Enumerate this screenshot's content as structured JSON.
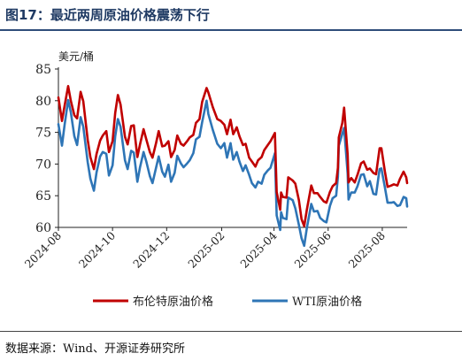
{
  "title": "图17：最近两周原油价格震荡下行",
  "source": "数据来源：Wind、开源证券研究所",
  "chart_data": {
    "type": "line",
    "title": "图17：最近两周原油价格震荡下行",
    "ylabel": "美元/桶",
    "xlabel": "",
    "ylim": [
      60,
      85
    ],
    "yticks": [
      60,
      65,
      70,
      75,
      80,
      85
    ],
    "xticks": [
      "2024-08",
      "2024-10",
      "2024-12",
      "2025-02",
      "2025-04",
      "2025-06",
      "2025-08"
    ],
    "xlim": [
      "2024-08-01",
      "2025-08-29"
    ],
    "grid": false,
    "legend": "bottom",
    "series": [
      {
        "name": "布伦特原油价格",
        "color": "#c00000",
        "points": [
          [
            "2024-08-01",
            80.5
          ],
          [
            "2024-08-05",
            76.8
          ],
          [
            "2024-08-08",
            79.2
          ],
          [
            "2024-08-12",
            82.3
          ],
          [
            "2024-08-15",
            80.0
          ],
          [
            "2024-08-19",
            77.7
          ],
          [
            "2024-08-22",
            77.2
          ],
          [
            "2024-08-26",
            81.4
          ],
          [
            "2024-08-29",
            79.9
          ],
          [
            "2024-09-03",
            73.8
          ],
          [
            "2024-09-06",
            71.1
          ],
          [
            "2024-09-10",
            69.2
          ],
          [
            "2024-09-13",
            71.6
          ],
          [
            "2024-09-17",
            73.7
          ],
          [
            "2024-09-20",
            74.5
          ],
          [
            "2024-09-24",
            75.2
          ],
          [
            "2024-09-27",
            71.9
          ],
          [
            "2024-10-01",
            73.6
          ],
          [
            "2024-10-04",
            78.1
          ],
          [
            "2024-10-07",
            80.9
          ],
          [
            "2024-10-10",
            79.4
          ],
          [
            "2024-10-15",
            74.3
          ],
          [
            "2024-10-18",
            73.1
          ],
          [
            "2024-10-22",
            76.0
          ],
          [
            "2024-10-25",
            76.1
          ],
          [
            "2024-10-29",
            71.1
          ],
          [
            "2024-11-01",
            73.1
          ],
          [
            "2024-11-05",
            75.5
          ],
          [
            "2024-11-08",
            73.9
          ],
          [
            "2024-11-12",
            71.9
          ],
          [
            "2024-11-15",
            71.0
          ],
          [
            "2024-11-19",
            73.3
          ],
          [
            "2024-11-22",
            75.2
          ],
          [
            "2024-11-26",
            72.8
          ],
          [
            "2024-11-29",
            72.9
          ],
          [
            "2024-12-03",
            73.6
          ],
          [
            "2024-12-06",
            71.1
          ],
          [
            "2024-12-10",
            72.2
          ],
          [
            "2024-12-13",
            74.5
          ],
          [
            "2024-12-17",
            73.2
          ],
          [
            "2024-12-20",
            72.9
          ],
          [
            "2024-12-24",
            73.6
          ],
          [
            "2024-12-27",
            74.2
          ],
          [
            "2024-12-31",
            74.6
          ],
          [
            "2025-01-03",
            76.5
          ],
          [
            "2025-01-07",
            77.1
          ],
          [
            "2025-01-10",
            79.8
          ],
          [
            "2025-01-15",
            82.0
          ],
          [
            "2025-01-17",
            81.3
          ],
          [
            "2025-01-22",
            79.0
          ],
          [
            "2025-01-27",
            77.1
          ],
          [
            "2025-01-31",
            76.8
          ],
          [
            "2025-02-04",
            76.2
          ],
          [
            "2025-02-07",
            74.7
          ],
          [
            "2025-02-11",
            77.0
          ],
          [
            "2025-02-14",
            74.7
          ],
          [
            "2025-02-18",
            75.8
          ],
          [
            "2025-02-21",
            74.4
          ],
          [
            "2025-02-25",
            73.0
          ],
          [
            "2025-02-28",
            73.2
          ],
          [
            "2025-03-04",
            71.0
          ],
          [
            "2025-03-07",
            70.4
          ],
          [
            "2025-03-11",
            69.6
          ],
          [
            "2025-03-14",
            70.6
          ],
          [
            "2025-03-18",
            71.1
          ],
          [
            "2025-03-21",
            72.2
          ],
          [
            "2025-03-25",
            73.0
          ],
          [
            "2025-03-28",
            73.6
          ],
          [
            "2025-04-02",
            74.9
          ],
          [
            "2025-04-04",
            65.6
          ],
          [
            "2025-04-08",
            62.8
          ],
          [
            "2025-04-09",
            65.5
          ],
          [
            "2025-04-11",
            64.8
          ],
          [
            "2025-04-15",
            64.7
          ],
          [
            "2025-04-17",
            67.9
          ],
          [
            "2025-04-22",
            67.4
          ],
          [
            "2025-04-25",
            66.9
          ],
          [
            "2025-04-29",
            64.3
          ],
          [
            "2025-05-02",
            61.3
          ],
          [
            "2025-05-05",
            60.2
          ],
          [
            "2025-05-08",
            62.8
          ],
          [
            "2025-05-13",
            66.6
          ],
          [
            "2025-05-16",
            65.4
          ],
          [
            "2025-05-20",
            65.4
          ],
          [
            "2025-05-23",
            64.8
          ],
          [
            "2025-05-27",
            64.1
          ],
          [
            "2025-05-30",
            63.9
          ],
          [
            "2025-06-03",
            65.6
          ],
          [
            "2025-06-06",
            66.5
          ],
          [
            "2025-06-10",
            67.0
          ],
          [
            "2025-06-12",
            69.4
          ],
          [
            "2025-06-13",
            74.2
          ],
          [
            "2025-06-17",
            76.5
          ],
          [
            "2025-06-19",
            78.9
          ],
          [
            "2025-06-23",
            71.5
          ],
          [
            "2025-06-24",
            67.1
          ],
          [
            "2025-06-27",
            67.8
          ],
          [
            "2025-07-01",
            67.1
          ],
          [
            "2025-07-04",
            68.3
          ],
          [
            "2025-07-08",
            70.1
          ],
          [
            "2025-07-11",
            70.4
          ],
          [
            "2025-07-15",
            69.1
          ],
          [
            "2025-07-18",
            69.3
          ],
          [
            "2025-07-22",
            68.6
          ],
          [
            "2025-07-25",
            68.4
          ],
          [
            "2025-07-29",
            72.5
          ],
          [
            "2025-07-31",
            72.5
          ],
          [
            "2025-08-04",
            68.8
          ],
          [
            "2025-08-07",
            66.4
          ],
          [
            "2025-08-11",
            66.6
          ],
          [
            "2025-08-14",
            66.8
          ],
          [
            "2025-08-18",
            66.6
          ],
          [
            "2025-08-21",
            67.7
          ],
          [
            "2025-08-25",
            68.8
          ],
          [
            "2025-08-28",
            67.9
          ],
          [
            "2025-08-29",
            67.0
          ]
        ]
      },
      {
        "name": "WTI原油价格",
        "color": "#2e75b6",
        "points": [
          [
            "2024-08-01",
            76.3
          ],
          [
            "2024-08-05",
            72.9
          ],
          [
            "2024-08-08",
            76.2
          ],
          [
            "2024-08-12",
            80.1
          ],
          [
            "2024-08-15",
            78.2
          ],
          [
            "2024-08-19",
            74.4
          ],
          [
            "2024-08-22",
            73.0
          ],
          [
            "2024-08-26",
            77.4
          ],
          [
            "2024-08-29",
            75.9
          ],
          [
            "2024-09-03",
            70.3
          ],
          [
            "2024-09-06",
            67.7
          ],
          [
            "2024-09-10",
            65.8
          ],
          [
            "2024-09-13",
            68.7
          ],
          [
            "2024-09-17",
            71.2
          ],
          [
            "2024-09-20",
            71.9
          ],
          [
            "2024-09-24",
            71.6
          ],
          [
            "2024-09-27",
            68.2
          ],
          [
            "2024-10-01",
            69.8
          ],
          [
            "2024-10-04",
            74.4
          ],
          [
            "2024-10-07",
            77.1
          ],
          [
            "2024-10-10",
            75.9
          ],
          [
            "2024-10-15",
            70.6
          ],
          [
            "2024-10-18",
            69.2
          ],
          [
            "2024-10-22",
            72.1
          ],
          [
            "2024-10-25",
            71.8
          ],
          [
            "2024-10-29",
            67.2
          ],
          [
            "2024-11-01",
            69.5
          ],
          [
            "2024-11-05",
            71.9
          ],
          [
            "2024-11-08",
            70.4
          ],
          [
            "2024-11-12",
            68.1
          ],
          [
            "2024-11-15",
            67.0
          ],
          [
            "2024-11-19",
            69.4
          ],
          [
            "2024-11-22",
            71.2
          ],
          [
            "2024-11-26",
            68.8
          ],
          [
            "2024-11-29",
            68.0
          ],
          [
            "2024-12-03",
            69.9
          ],
          [
            "2024-12-06",
            67.2
          ],
          [
            "2024-12-10",
            68.6
          ],
          [
            "2024-12-13",
            71.3
          ],
          [
            "2024-12-17",
            70.1
          ],
          [
            "2024-12-20",
            69.5
          ],
          [
            "2024-12-24",
            70.1
          ],
          [
            "2024-12-27",
            70.6
          ],
          [
            "2024-12-31",
            71.7
          ],
          [
            "2025-01-03",
            73.9
          ],
          [
            "2025-01-07",
            74.3
          ],
          [
            "2025-01-10",
            76.6
          ],
          [
            "2025-01-15",
            80.0
          ],
          [
            "2025-01-17",
            77.9
          ],
          [
            "2025-01-22",
            75.4
          ],
          [
            "2025-01-27",
            73.2
          ],
          [
            "2025-01-31",
            72.5
          ],
          [
            "2025-02-04",
            73.3
          ],
          [
            "2025-02-07",
            71.0
          ],
          [
            "2025-02-11",
            73.3
          ],
          [
            "2025-02-14",
            70.7
          ],
          [
            "2025-02-18",
            71.9
          ],
          [
            "2025-02-21",
            70.4
          ],
          [
            "2025-02-25",
            68.9
          ],
          [
            "2025-02-28",
            69.8
          ],
          [
            "2025-03-04",
            68.3
          ],
          [
            "2025-03-07",
            67.0
          ],
          [
            "2025-03-11",
            66.3
          ],
          [
            "2025-03-14",
            67.2
          ],
          [
            "2025-03-18",
            66.9
          ],
          [
            "2025-03-21",
            68.3
          ],
          [
            "2025-03-25",
            69.0
          ],
          [
            "2025-03-28",
            69.4
          ],
          [
            "2025-04-02",
            71.7
          ],
          [
            "2025-04-04",
            61.9
          ],
          [
            "2025-04-08",
            59.6
          ],
          [
            "2025-04-09",
            62.4
          ],
          [
            "2025-04-11",
            61.5
          ],
          [
            "2025-04-15",
            61.3
          ],
          [
            "2025-04-17",
            64.7
          ],
          [
            "2025-04-22",
            64.3
          ],
          [
            "2025-04-25",
            63.0
          ],
          [
            "2025-04-29",
            60.4
          ],
          [
            "2025-05-02",
            58.3
          ],
          [
            "2025-05-05",
            57.1
          ],
          [
            "2025-05-08",
            59.9
          ],
          [
            "2025-05-13",
            63.7
          ],
          [
            "2025-05-16",
            62.5
          ],
          [
            "2025-05-20",
            62.6
          ],
          [
            "2025-05-23",
            61.5
          ],
          [
            "2025-05-27",
            61.0
          ],
          [
            "2025-05-30",
            60.8
          ],
          [
            "2025-06-03",
            63.4
          ],
          [
            "2025-06-06",
            64.6
          ],
          [
            "2025-06-10",
            65.0
          ],
          [
            "2025-06-12",
            68.0
          ],
          [
            "2025-06-13",
            72.9
          ],
          [
            "2025-06-17",
            74.8
          ],
          [
            "2025-06-19",
            75.7
          ],
          [
            "2025-06-23",
            68.5
          ],
          [
            "2025-06-24",
            64.4
          ],
          [
            "2025-06-27",
            65.5
          ],
          [
            "2025-07-01",
            65.5
          ],
          [
            "2025-07-04",
            66.5
          ],
          [
            "2025-07-08",
            68.3
          ],
          [
            "2025-07-11",
            68.4
          ],
          [
            "2025-07-15",
            66.5
          ],
          [
            "2025-07-18",
            67.3
          ],
          [
            "2025-07-22",
            65.3
          ],
          [
            "2025-07-25",
            65.2
          ],
          [
            "2025-07-29",
            69.2
          ],
          [
            "2025-07-31",
            69.3
          ],
          [
            "2025-08-04",
            66.3
          ],
          [
            "2025-08-07",
            63.9
          ],
          [
            "2025-08-11",
            63.9
          ],
          [
            "2025-08-14",
            64.0
          ],
          [
            "2025-08-18",
            63.4
          ],
          [
            "2025-08-21",
            63.5
          ],
          [
            "2025-08-25",
            64.8
          ],
          [
            "2025-08-28",
            64.6
          ],
          [
            "2025-08-29",
            63.3
          ]
        ]
      }
    ]
  }
}
